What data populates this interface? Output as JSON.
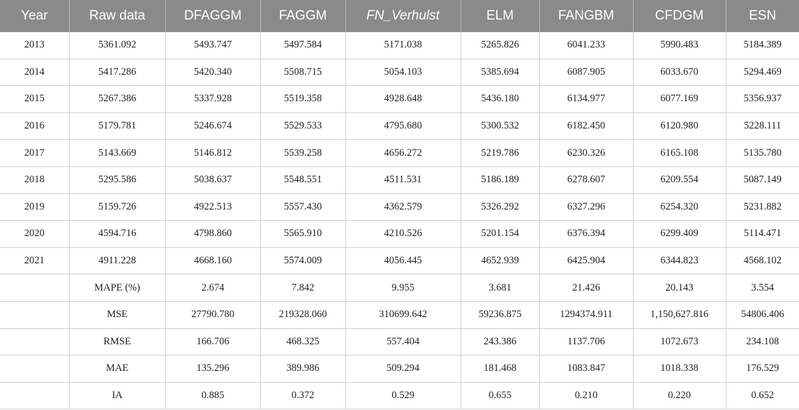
{
  "headers": [
    "Year",
    "Raw data",
    "DFAGGM",
    "FAGGM",
    "FN_Verhulst",
    "ELM",
    "FANGBM",
    "CFDGM",
    "ESN"
  ],
  "rows": [
    [
      "2013",
      "5361.092",
      "5493.747",
      "5497.584",
      "5171.038",
      "5265.826",
      "6041.233",
      "5990.483",
      "5184.389"
    ],
    [
      "2014",
      "5417.286",
      "5420.340",
      "5508.715",
      "5054.103",
      "5385.694",
      "6087.905",
      "6033.670",
      "5294.469"
    ],
    [
      "2015",
      "5267.386",
      "5337.928",
      "5519.358",
      "4928.648",
      "5436.180",
      "6134.977",
      "6077.169",
      "5356.937"
    ],
    [
      "2016",
      "5179.781",
      "5246.674",
      "5529.533",
      "4795.680",
      "5300.532",
      "6182.450",
      "6120.980",
      "5228.111"
    ],
    [
      "2017",
      "5143.669",
      "5146.812",
      "5539.258",
      "4656.272",
      "5219.786",
      "6230.326",
      "6165.108",
      "5135.780"
    ],
    [
      "2018",
      "5295.586",
      "5038.637",
      "5548.551",
      "4511.531",
      "5186.189",
      "6278.607",
      "6209.554",
      "5087.149"
    ],
    [
      "2019",
      "5159.726",
      "4922.513",
      "5557.430",
      "4362.579",
      "5326.292",
      "6327.296",
      "6254.320",
      "5231.882"
    ],
    [
      "2020",
      "4594.716",
      "4798.860",
      "5565.910",
      "4210.526",
      "5201.154",
      "6376.394",
      "6299.409",
      "5114.471"
    ],
    [
      "2021",
      "4911.228",
      "4668.160",
      "5574.009",
      "4056.445",
      "4652.939",
      "6425.904",
      "6344.823",
      "4568.102"
    ],
    [
      "",
      "MAPE (%)",
      "2.674",
      "7.842",
      "9.955",
      "3.681",
      "21.426",
      "20.143",
      "3.554"
    ],
    [
      "",
      "MSE",
      "27790.780",
      "219328.060",
      "310699.642",
      "59236.875",
      "1294374.911",
      "1,150,627.816",
      "54806.406"
    ],
    [
      "",
      "RMSE",
      "166.706",
      "468.325",
      "557.404",
      "243.386",
      "1137.706",
      "1072.673",
      "234.108"
    ],
    [
      "",
      "MAE",
      "135.296",
      "389.986",
      "509.294",
      "181.468",
      "1083.847",
      "1018.338",
      "176.529"
    ],
    [
      "",
      "IA",
      "0.885",
      "0.372",
      "0.529",
      "0.655",
      "0.210",
      "0.220",
      "0.652"
    ]
  ]
}
